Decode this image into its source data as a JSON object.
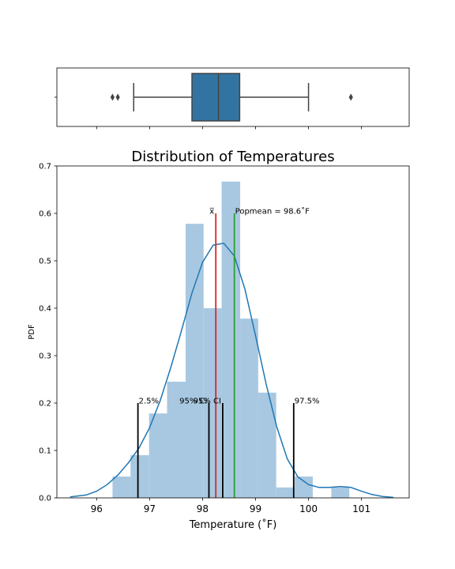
{
  "chart_data": [
    {
      "type": "boxplot",
      "xlim": [
        95.25,
        101.9
      ],
      "box": {
        "whisker_low": 96.7,
        "q1": 97.8,
        "median": 98.3,
        "q3": 98.7,
        "whisker_high": 100.0
      },
      "outliers": [
        96.3,
        96.4,
        100.8
      ],
      "color": "#3274a1",
      "x_ticklabels_visible": false
    },
    {
      "type": "bar",
      "title": "Distribution of Temperatures",
      "xlabel": "Temperature (˚F)",
      "ylabel": "PDF",
      "xlim": [
        95.25,
        101.9
      ],
      "ylim": [
        0,
        0.7
      ],
      "xticks": [
        96,
        97,
        98,
        99,
        100,
        101
      ],
      "yticks": [
        "0.0",
        "0.1",
        "0.2",
        "0.3",
        "0.4",
        "0.5",
        "0.6",
        "0.7"
      ],
      "hist_color": "#a8c8e1",
      "bins": [
        {
          "x0": 96.3,
          "x1": 96.64,
          "value": 0.045
        },
        {
          "x0": 96.64,
          "x1": 96.99,
          "value": 0.09
        },
        {
          "x0": 96.99,
          "x1": 97.33,
          "value": 0.178
        },
        {
          "x0": 97.33,
          "x1": 97.68,
          "value": 0.245
        },
        {
          "x0": 97.68,
          "x1": 98.02,
          "value": 0.578
        },
        {
          "x0": 98.02,
          "x1": 98.36,
          "value": 0.4
        },
        {
          "x0": 98.36,
          "x1": 98.71,
          "value": 0.667
        },
        {
          "x0": 98.71,
          "x1": 99.05,
          "value": 0.378
        },
        {
          "x0": 99.05,
          "x1": 99.39,
          "value": 0.222
        },
        {
          "x0": 99.39,
          "x1": 99.74,
          "value": 0.022
        },
        {
          "x0": 99.74,
          "x1": 100.08,
          "value": 0.045
        },
        {
          "x0": 100.08,
          "x1": 100.43,
          "value": 0.0
        },
        {
          "x0": 100.43,
          "x1": 100.77,
          "value": 0.022
        }
      ],
      "kde": {
        "color": "#1f77b4",
        "x": [
          95.5,
          95.8,
          96.0,
          96.2,
          96.4,
          96.6,
          96.8,
          97.0,
          97.2,
          97.4,
          97.6,
          97.8,
          98.0,
          98.2,
          98.4,
          98.6,
          98.8,
          99.0,
          99.2,
          99.4,
          99.6,
          99.8,
          100.0,
          100.2,
          100.4,
          100.6,
          100.8,
          101.0,
          101.2,
          101.4,
          101.6
        ],
        "y": [
          0.002,
          0.006,
          0.014,
          0.028,
          0.048,
          0.074,
          0.105,
          0.148,
          0.205,
          0.275,
          0.352,
          0.432,
          0.497,
          0.533,
          0.537,
          0.51,
          0.44,
          0.342,
          0.24,
          0.15,
          0.082,
          0.044,
          0.028,
          0.022,
          0.022,
          0.024,
          0.022,
          0.014,
          0.007,
          0.003,
          0.001
        ]
      },
      "vlines": [
        {
          "name": "sample-mean",
          "x": 98.25,
          "y_top": 0.6,
          "color": "#d62728",
          "label": "x̅",
          "label_side": "left"
        },
        {
          "name": "population-mean",
          "x": 98.6,
          "y_top": 0.6,
          "color": "#2ca02c",
          "label": "Popmean = 98.6˚F",
          "label_side": "right"
        },
        {
          "name": "ci-lower",
          "x": 98.12,
          "y_top": 0.2,
          "color": "#000000",
          "label": "95% CI",
          "label_side": "left"
        },
        {
          "name": "ci-upper",
          "x": 98.38,
          "y_top": 0.2,
          "color": "#000000",
          "label": "95% CI",
          "label_side": "left"
        },
        {
          "name": "percentile-2-5",
          "x": 96.78,
          "y_top": 0.2,
          "color": "#000000",
          "label": "2.5%",
          "label_side": "right"
        },
        {
          "name": "percentile-97-5",
          "x": 99.72,
          "y_top": 0.2,
          "color": "#000000",
          "label": "97.5%",
          "label_side": "right"
        }
      ]
    }
  ]
}
